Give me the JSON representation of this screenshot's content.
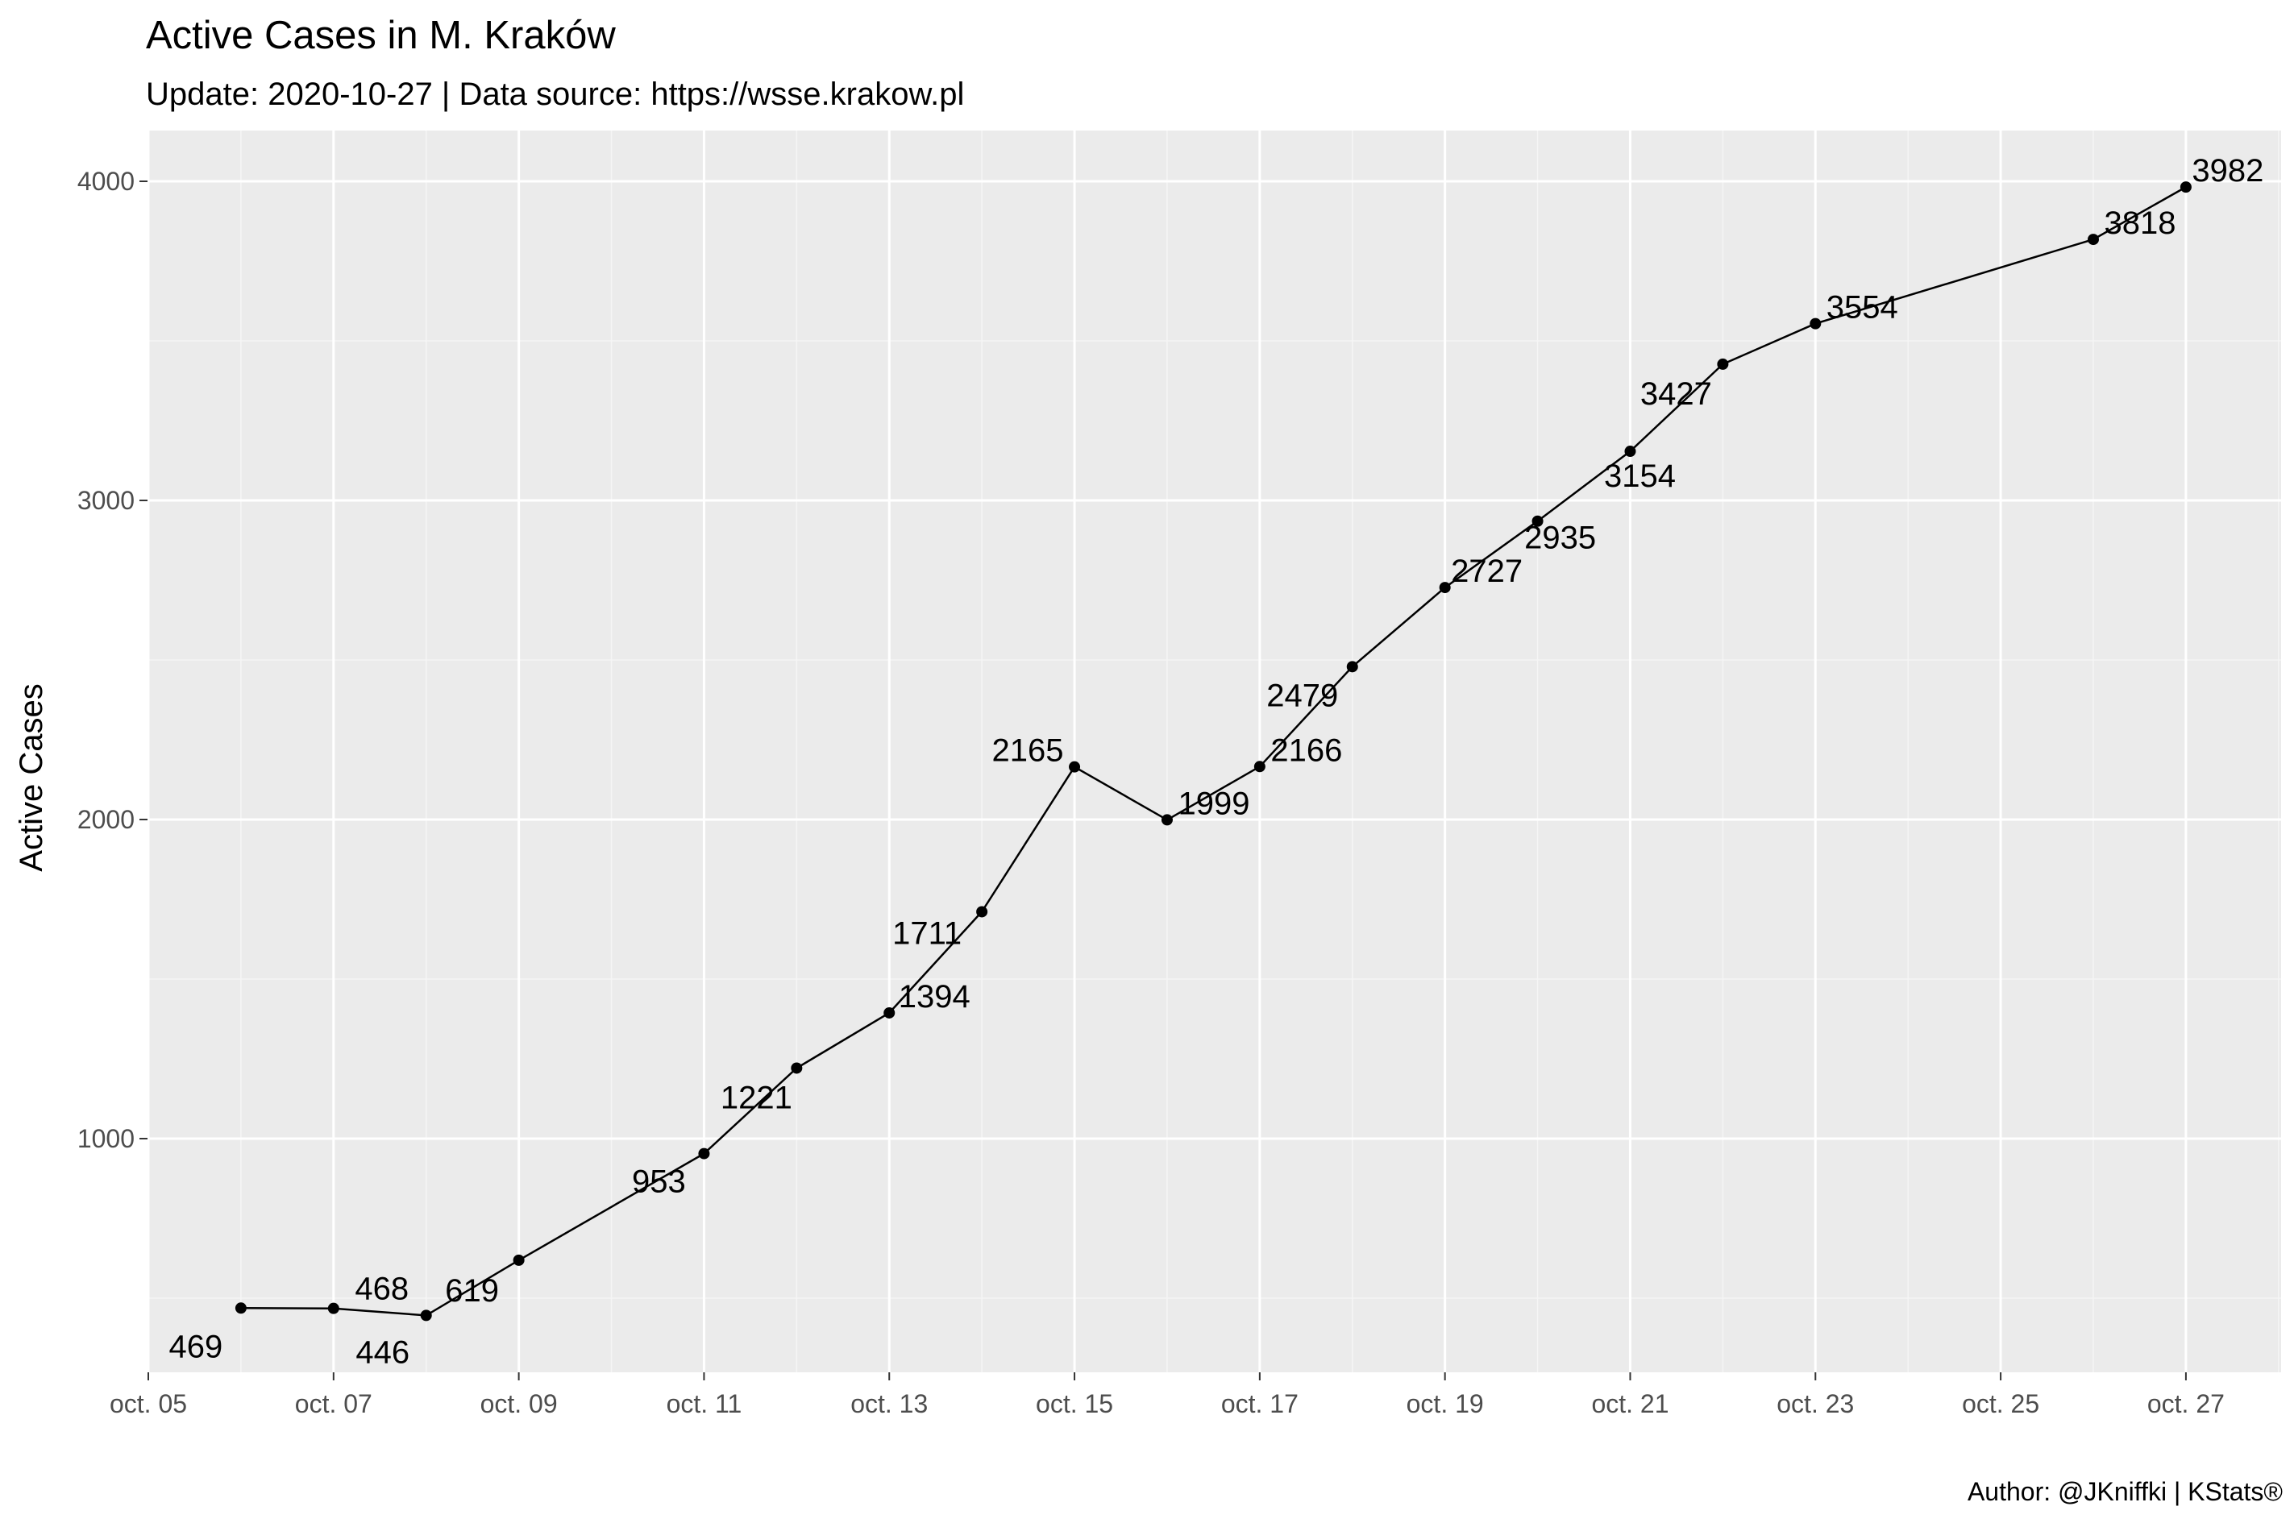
{
  "colors": {
    "panel_background": "#ebebeb",
    "grid_major": "#ffffff",
    "grid_minor": "#f5f5f5",
    "line": "#000000",
    "point": "#000000",
    "tick_text": "#4d4d4d",
    "text": "#000000"
  },
  "caption": "Author: @JKniffki | KStats®",
  "chart_data": {
    "type": "line",
    "title": "Active Cases in M. Kraków",
    "subtitle": "Update: 2020-10-27 | Data source: https://wsse.krakow.pl",
    "xlabel": "",
    "ylabel": "Active Cases",
    "x_scale": "date",
    "xlim": [
      "2020-10-05",
      "2020-10-28"
    ],
    "ylim": [
      300,
      4150
    ],
    "grid": true,
    "legend": "none",
    "x_ticks": [
      {
        "date": "2020-10-05",
        "label": "oct. 05"
      },
      {
        "date": "2020-10-07",
        "label": "oct. 07"
      },
      {
        "date": "2020-10-09",
        "label": "oct. 09"
      },
      {
        "date": "2020-10-11",
        "label": "oct. 11"
      },
      {
        "date": "2020-10-13",
        "label": "oct. 13"
      },
      {
        "date": "2020-10-15",
        "label": "oct. 15"
      },
      {
        "date": "2020-10-17",
        "label": "oct. 17"
      },
      {
        "date": "2020-10-19",
        "label": "oct. 19"
      },
      {
        "date": "2020-10-21",
        "label": "oct. 21"
      },
      {
        "date": "2020-10-23",
        "label": "oct. 23"
      },
      {
        "date": "2020-10-25",
        "label": "oct. 25"
      },
      {
        "date": "2020-10-27",
        "label": "oct. 27"
      }
    ],
    "y_ticks": [
      {
        "value": 1000,
        "label": "1000"
      },
      {
        "value": 2000,
        "label": "2000"
      },
      {
        "value": 3000,
        "label": "3000"
      },
      {
        "value": 4000,
        "label": "4000"
      }
    ],
    "x": [
      "2020-10-06",
      "2020-10-07",
      "2020-10-08",
      "2020-10-09",
      "2020-10-11",
      "2020-10-12",
      "2020-10-13",
      "2020-10-14",
      "2020-10-15",
      "2020-10-16",
      "2020-10-17",
      "2020-10-18",
      "2020-10-19",
      "2020-10-20",
      "2020-10-21",
      "2020-10-22",
      "2020-10-23",
      "2020-10-26",
      "2020-10-27"
    ],
    "y": [
      469,
      468,
      446,
      619,
      953,
      1221,
      1394,
      1711,
      2165,
      1999,
      2166,
      2479,
      2727,
      2935,
      3154,
      3427,
      3554,
      3818,
      3982
    ],
    "data_labels": [
      "469",
      "468",
      "446",
      "619",
      "953",
      "1221",
      "1394",
      "1711",
      "2165",
      "1999",
      "2166",
      "2479",
      "2727",
      "2935",
      "3154",
      "3427",
      "3554",
      "3818",
      "3982"
    ]
  }
}
